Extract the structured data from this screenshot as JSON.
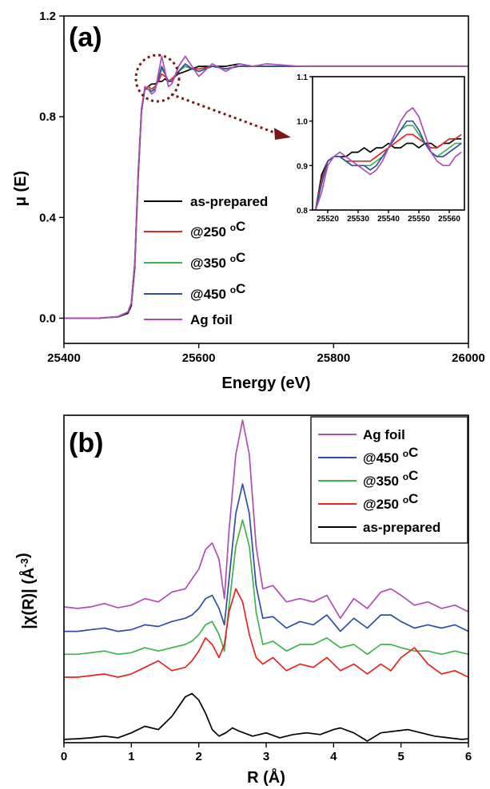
{
  "chart_data": [
    {
      "panel_label": "(a)",
      "type": "line",
      "xlabel": "Energy (eV)",
      "ylabel": "μ (E)",
      "xlim": [
        25400,
        26000
      ],
      "ylim": [
        -0.1,
        1.2
      ],
      "xticks": [
        25400,
        25600,
        25800,
        26000
      ],
      "yticks": [
        0.0,
        0.4,
        0.8,
        1.2
      ],
      "xtick_labels": [
        "25400",
        "25600",
        "25800",
        "26000"
      ],
      "ytick_labels": [
        "0.0",
        "0.4",
        "0.8",
        "1.2"
      ],
      "grid": false,
      "legend_position": "lower-left",
      "series": [
        {
          "name": "as-prepared",
          "color": "#000000",
          "x": [
            25400,
            25450,
            25480,
            25495,
            25500,
            25505,
            25510,
            25515,
            25520,
            25525,
            25530,
            25535,
            25540,
            25545,
            25550,
            25555,
            25560,
            25570,
            25580,
            25590,
            25600,
            25620,
            25640,
            25660,
            25680,
            25700,
            25750,
            25800,
            25850,
            25900,
            25950,
            26000
          ],
          "y": [
            0.0,
            0.0,
            0.005,
            0.02,
            0.05,
            0.2,
            0.55,
            0.82,
            0.91,
            0.92,
            0.93,
            0.93,
            0.94,
            0.94,
            0.95,
            0.94,
            0.95,
            0.97,
            0.98,
            0.99,
            1.0,
            1.0,
            1.0,
            1.01,
            1.0,
            1.0,
            1.0,
            1.0,
            1.0,
            1.0,
            1.0,
            1.0
          ]
        },
        {
          "name": "@250 oC",
          "color": "#e8231d",
          "x": [
            25400,
            25450,
            25480,
            25495,
            25500,
            25505,
            25510,
            25515,
            25520,
            25525,
            25530,
            25535,
            25540,
            25545,
            25550,
            25555,
            25560,
            25570,
            25580,
            25590,
            25600,
            25620,
            25640,
            25660,
            25680,
            25700,
            25750,
            25800,
            25850,
            25900,
            25950,
            26000
          ],
          "y": [
            0.0,
            0.0,
            0.006,
            0.025,
            0.06,
            0.22,
            0.57,
            0.83,
            0.91,
            0.92,
            0.91,
            0.92,
            0.94,
            0.97,
            0.96,
            0.94,
            0.95,
            0.98,
            1.0,
            0.99,
            0.99,
            1.0,
            0.99,
            1.0,
            1.0,
            1.0,
            1.0,
            1.0,
            1.0,
            1.0,
            1.0,
            1.0
          ]
        },
        {
          "name": "@350 oC",
          "color": "#3cb44b",
          "x": [
            25400,
            25450,
            25480,
            25495,
            25500,
            25505,
            25510,
            25515,
            25520,
            25525,
            25530,
            25535,
            25540,
            25545,
            25550,
            25555,
            25560,
            25570,
            25580,
            25590,
            25600,
            25620,
            25640,
            25660,
            25680,
            25700,
            25750,
            25800,
            25850,
            25900,
            25950,
            26000
          ],
          "y": [
            0.0,
            0.0,
            0.006,
            0.025,
            0.06,
            0.22,
            0.57,
            0.83,
            0.91,
            0.91,
            0.91,
            0.91,
            0.95,
            0.99,
            0.97,
            0.94,
            0.94,
            0.98,
            1.0,
            0.99,
            0.98,
            1.0,
            0.99,
            1.0,
            1.0,
            1.0,
            1.0,
            1.0,
            1.0,
            1.0,
            1.0,
            1.0
          ]
        },
        {
          "name": "@450 oC",
          "color": "#2e4fa3",
          "x": [
            25400,
            25450,
            25480,
            25495,
            25500,
            25505,
            25510,
            25515,
            25520,
            25525,
            25530,
            25535,
            25540,
            25545,
            25550,
            25555,
            25560,
            25570,
            25580,
            25590,
            25600,
            25620,
            25640,
            25660,
            25680,
            25700,
            25750,
            25800,
            25850,
            25900,
            25950,
            26000
          ],
          "y": [
            0.0,
            0.0,
            0.006,
            0.025,
            0.06,
            0.22,
            0.57,
            0.83,
            0.91,
            0.91,
            0.9,
            0.91,
            0.95,
            1.0,
            0.97,
            0.94,
            0.94,
            0.98,
            1.01,
            0.99,
            0.98,
            1.0,
            0.99,
            1.0,
            1.0,
            1.0,
            1.0,
            1.0,
            1.0,
            1.0,
            1.0,
            1.0
          ]
        },
        {
          "name": "Ag foil",
          "color": "#b04db5",
          "x": [
            25400,
            25450,
            25480,
            25495,
            25500,
            25505,
            25510,
            25515,
            25520,
            25525,
            25530,
            25535,
            25540,
            25545,
            25550,
            25555,
            25560,
            25570,
            25580,
            25590,
            25600,
            25620,
            25640,
            25660,
            25680,
            25700,
            25750,
            25800,
            25850,
            25900,
            25950,
            26000
          ],
          "y": [
            0.0,
            0.0,
            0.006,
            0.025,
            0.06,
            0.22,
            0.57,
            0.83,
            0.92,
            0.91,
            0.89,
            0.9,
            0.97,
            1.04,
            0.98,
            0.92,
            0.93,
            1.0,
            1.04,
            1.0,
            0.96,
            1.01,
            0.98,
            1.01,
            1.0,
            1.01,
            1.0,
            1.0,
            1.0,
            1.0,
            1.0,
            1.0
          ]
        }
      ],
      "inset": {
        "xlim": [
          25515,
          25565
        ],
        "ylim": [
          0.8,
          1.1
        ],
        "xticks": [
          25520,
          25530,
          25540,
          25550,
          25560
        ],
        "yticks": [
          0.8,
          0.9,
          1.0,
          1.1
        ],
        "xtick_labels": [
          "25520",
          "25530",
          "25540",
          "25550",
          "25560"
        ],
        "ytick_labels": [
          "0.8",
          "0.9",
          "1.0",
          "1.1"
        ],
        "x": [
          25516,
          25518,
          25520,
          25522,
          25524,
          25526,
          25528,
          25530,
          25532,
          25534,
          25536,
          25538,
          25540,
          25542,
          25544,
          25546,
          25548,
          25550,
          25552,
          25554,
          25556,
          25558,
          25560,
          25562,
          25564
        ],
        "series": [
          {
            "name": "as-prepared",
            "color": "#000000",
            "y": [
              0.8,
              0.88,
              0.91,
              0.92,
              0.92,
              0.92,
              0.93,
              0.93,
              0.94,
              0.93,
              0.94,
              0.94,
              0.95,
              0.94,
              0.94,
              0.95,
              0.95,
              0.94,
              0.95,
              0.95,
              0.94,
              0.95,
              0.95,
              0.96,
              0.96
            ]
          },
          {
            "name": "@250 oC",
            "color": "#e8231d",
            "y": [
              0.8,
              0.87,
              0.91,
              0.92,
              0.92,
              0.91,
              0.91,
              0.91,
              0.91,
              0.91,
              0.92,
              0.93,
              0.94,
              0.95,
              0.96,
              0.97,
              0.97,
              0.96,
              0.95,
              0.94,
              0.94,
              0.95,
              0.96,
              0.96,
              0.97
            ]
          },
          {
            "name": "@350 oC",
            "color": "#3cb44b",
            "y": [
              0.8,
              0.86,
              0.91,
              0.92,
              0.92,
              0.91,
              0.9,
              0.9,
              0.9,
              0.9,
              0.91,
              0.92,
              0.94,
              0.96,
              0.98,
              0.99,
              0.99,
              0.97,
              0.95,
              0.93,
              0.92,
              0.93,
              0.94,
              0.95,
              0.95
            ]
          },
          {
            "name": "@450 oC",
            "color": "#2e4fa3",
            "y": [
              0.8,
              0.86,
              0.91,
              0.92,
              0.92,
              0.91,
              0.9,
              0.9,
              0.9,
              0.89,
              0.9,
              0.92,
              0.94,
              0.96,
              0.98,
              1.0,
              1.0,
              0.98,
              0.95,
              0.93,
              0.92,
              0.92,
              0.93,
              0.94,
              0.95
            ]
          },
          {
            "name": "Ag foil",
            "color": "#b04db5",
            "y": [
              0.8,
              0.84,
              0.9,
              0.92,
              0.93,
              0.92,
              0.91,
              0.9,
              0.89,
              0.88,
              0.89,
              0.91,
              0.94,
              0.97,
              1.0,
              1.02,
              1.03,
              1.01,
              0.97,
              0.93,
              0.91,
              0.9,
              0.9,
              0.92,
              0.93
            ]
          }
        ]
      }
    },
    {
      "panel_label": "(b)",
      "type": "line",
      "xlabel": "R (Å)",
      "ylabel": "|χ(R)| (Å-3)",
      "xlim": [
        0,
        6
      ],
      "ylim": [
        0,
        1
      ],
      "xticks": [
        0,
        1,
        2,
        3,
        4,
        5,
        6
      ],
      "xtick_labels": [
        "0",
        "1",
        "2",
        "3",
        "4",
        "5",
        "6"
      ],
      "grid": false,
      "legend_position": "top-right",
      "series": [
        {
          "name": "Ag foil",
          "color": "#b04db5",
          "x": [
            0,
            0.2,
            0.4,
            0.6,
            0.8,
            1.0,
            1.2,
            1.4,
            1.6,
            1.8,
            1.9,
            2.0,
            2.1,
            2.2,
            2.3,
            2.38,
            2.45,
            2.55,
            2.65,
            2.75,
            2.85,
            2.95,
            3.1,
            3.3,
            3.5,
            3.7,
            3.9,
            4.1,
            4.3,
            4.5,
            4.7,
            4.85,
            5.0,
            5.2,
            5.4,
            5.6,
            5.8,
            6.0
          ],
          "y": [
            0.415,
            0.41,
            0.415,
            0.425,
            0.412,
            0.42,
            0.44,
            0.43,
            0.46,
            0.47,
            0.5,
            0.53,
            0.59,
            0.61,
            0.56,
            0.44,
            0.65,
            0.88,
            0.985,
            0.88,
            0.6,
            0.47,
            0.48,
            0.43,
            0.44,
            0.43,
            0.45,
            0.38,
            0.44,
            0.41,
            0.46,
            0.47,
            0.45,
            0.42,
            0.43,
            0.41,
            0.42,
            0.4
          ]
        },
        {
          "name": "@450 oC",
          "color": "#2e4fa3",
          "x": [
            0,
            0.2,
            0.4,
            0.6,
            0.8,
            1.0,
            1.2,
            1.4,
            1.6,
            1.8,
            1.9,
            2.0,
            2.1,
            2.2,
            2.3,
            2.38,
            2.45,
            2.55,
            2.65,
            2.75,
            2.85,
            2.95,
            3.1,
            3.3,
            3.5,
            3.7,
            3.9,
            4.1,
            4.3,
            4.5,
            4.7,
            4.85,
            5.0,
            5.2,
            5.4,
            5.6,
            5.8,
            6.0
          ],
          "y": [
            0.34,
            0.34,
            0.345,
            0.35,
            0.34,
            0.345,
            0.36,
            0.355,
            0.37,
            0.38,
            0.39,
            0.41,
            0.44,
            0.45,
            0.41,
            0.36,
            0.5,
            0.7,
            0.79,
            0.7,
            0.48,
            0.38,
            0.385,
            0.35,
            0.37,
            0.36,
            0.39,
            0.34,
            0.38,
            0.35,
            0.39,
            0.39,
            0.37,
            0.35,
            0.36,
            0.35,
            0.36,
            0.34
          ]
        },
        {
          "name": "@350 oC",
          "color": "#3cb44b",
          "x": [
            0,
            0.2,
            0.4,
            0.6,
            0.8,
            1.0,
            1.2,
            1.4,
            1.6,
            1.8,
            1.9,
            2.0,
            2.1,
            2.2,
            2.3,
            2.38,
            2.45,
            2.55,
            2.65,
            2.75,
            2.85,
            2.95,
            3.1,
            3.3,
            3.5,
            3.7,
            3.9,
            4.1,
            4.3,
            4.5,
            4.7,
            4.85,
            5.0,
            5.2,
            5.4,
            5.6,
            5.8,
            6.0
          ],
          "y": [
            0.27,
            0.27,
            0.275,
            0.28,
            0.27,
            0.275,
            0.29,
            0.28,
            0.29,
            0.3,
            0.31,
            0.33,
            0.36,
            0.37,
            0.33,
            0.28,
            0.42,
            0.6,
            0.68,
            0.6,
            0.4,
            0.3,
            0.31,
            0.28,
            0.3,
            0.3,
            0.32,
            0.29,
            0.3,
            0.27,
            0.3,
            0.3,
            0.29,
            0.28,
            0.28,
            0.27,
            0.28,
            0.27
          ]
        },
        {
          "name": "@250 oC",
          "color": "#e8231d",
          "x": [
            0,
            0.2,
            0.4,
            0.6,
            0.8,
            1.0,
            1.2,
            1.4,
            1.6,
            1.8,
            1.9,
            2.0,
            2.1,
            2.2,
            2.3,
            2.38,
            2.45,
            2.55,
            2.65,
            2.75,
            2.85,
            2.95,
            3.1,
            3.3,
            3.5,
            3.7,
            3.9,
            4.1,
            4.3,
            4.5,
            4.7,
            4.85,
            5.0,
            5.2,
            5.4,
            5.6,
            5.8,
            6.0
          ],
          "y": [
            0.2,
            0.2,
            0.205,
            0.21,
            0.2,
            0.21,
            0.23,
            0.25,
            0.22,
            0.23,
            0.25,
            0.28,
            0.32,
            0.3,
            0.26,
            0.3,
            0.4,
            0.47,
            0.43,
            0.33,
            0.26,
            0.24,
            0.26,
            0.22,
            0.24,
            0.23,
            0.26,
            0.22,
            0.24,
            0.21,
            0.24,
            0.22,
            0.26,
            0.29,
            0.24,
            0.21,
            0.22,
            0.2
          ]
        },
        {
          "name": "as-prepared",
          "color": "#000000",
          "x": [
            0,
            0.2,
            0.4,
            0.6,
            0.8,
            1.0,
            1.2,
            1.4,
            1.6,
            1.7,
            1.8,
            1.9,
            2.0,
            2.1,
            2.2,
            2.3,
            2.4,
            2.5,
            2.6,
            2.8,
            3.0,
            3.2,
            3.4,
            3.6,
            3.8,
            4.0,
            4.1,
            4.3,
            4.5,
            4.7,
            4.9,
            5.1,
            5.3,
            5.5,
            5.7,
            5.9,
            6.0
          ],
          "y": [
            0.01,
            0.012,
            0.015,
            0.02,
            0.015,
            0.03,
            0.05,
            0.04,
            0.08,
            0.11,
            0.14,
            0.15,
            0.13,
            0.09,
            0.04,
            0.02,
            0.03,
            0.045,
            0.035,
            0.02,
            0.03,
            0.015,
            0.025,
            0.03,
            0.025,
            0.04,
            0.045,
            0.03,
            0.005,
            0.03,
            0.035,
            0.04,
            0.03,
            0.02,
            0.015,
            0.01,
            0.012
          ]
        }
      ]
    }
  ]
}
